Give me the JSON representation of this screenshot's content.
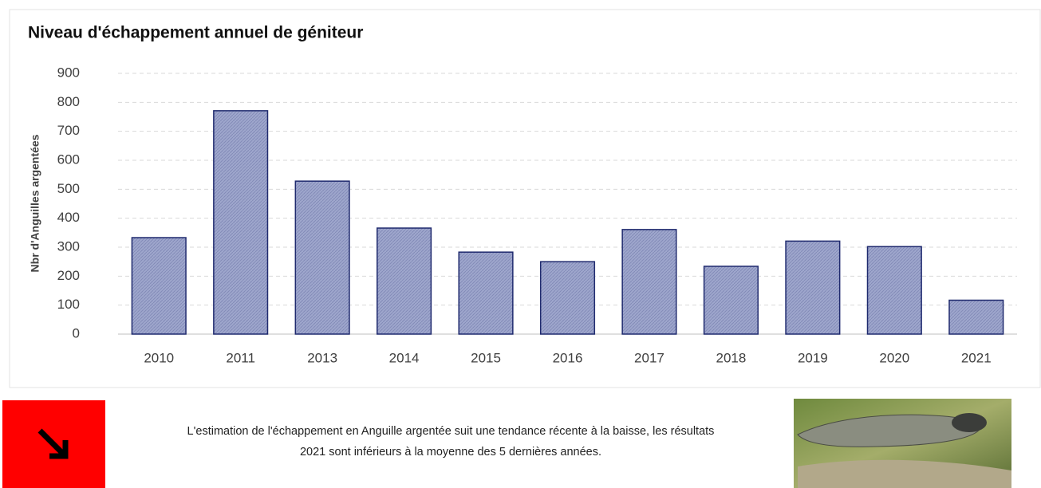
{
  "chart_data": {
    "type": "bar",
    "title": "Niveau d'échappement annuel de géniteur",
    "y_label": "Nbr d'Anguilles argentées",
    "categories": [
      "2010",
      "2011",
      "2013",
      "2014",
      "2015",
      "2016",
      "2017",
      "2018",
      "2019",
      "2020",
      "2021"
    ],
    "values": [
      333,
      771,
      528,
      366,
      283,
      250,
      361,
      234,
      321,
      302,
      117
    ],
    "color": "#9ea6cc",
    "edge_color": "#1f2a6e",
    "ylim": [
      0,
      900
    ],
    "yticks": [
      0,
      100,
      200,
      300,
      400,
      500,
      600,
      700,
      800,
      900
    ],
    "grid": true
  },
  "note": {
    "lines": [
      "L'estimation de l'échappement en Anguille argentée suit une tendance récente à la baisse, les résultats",
      "2021 sont inférieurs à la moyenne des 5 dernières années."
    ]
  }
}
